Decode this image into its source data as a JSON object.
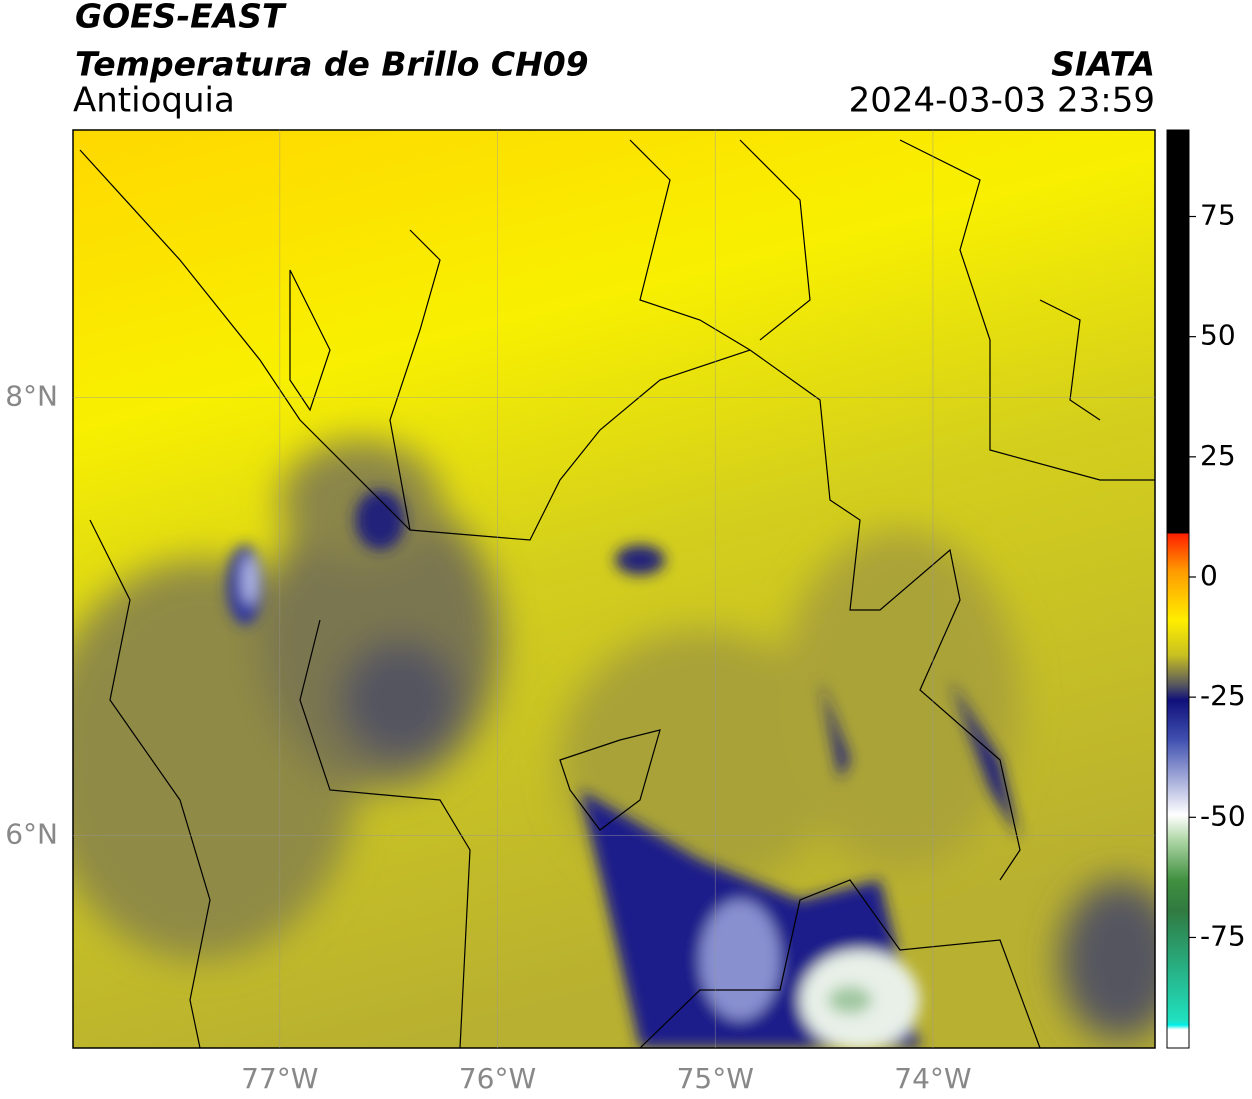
{
  "header": {
    "title": "GOES-EAST",
    "subtitle": "Temperatura de Brillo CH09",
    "region": "Antioquia",
    "source": "SIATA",
    "datetime": "2024-03-03 23:59"
  },
  "map": {
    "xlim": [
      -77.95,
      -72.98
    ],
    "ylim": [
      5.03,
      9.22
    ],
    "xticks": [
      {
        "value": -77,
        "label": "77°W"
      },
      {
        "value": -76,
        "label": "76°W"
      },
      {
        "value": -75,
        "label": "75°W"
      },
      {
        "value": -74,
        "label": "74°W"
      }
    ],
    "yticks": [
      {
        "value": 6,
        "label": "6°N"
      },
      {
        "value": 8,
        "label": "8°N"
      }
    ],
    "grid": true
  },
  "colorbar": {
    "lim": [
      -98,
      93
    ],
    "ticks": [
      -75,
      -50,
      -25,
      0,
      25,
      50,
      75
    ]
  }
}
